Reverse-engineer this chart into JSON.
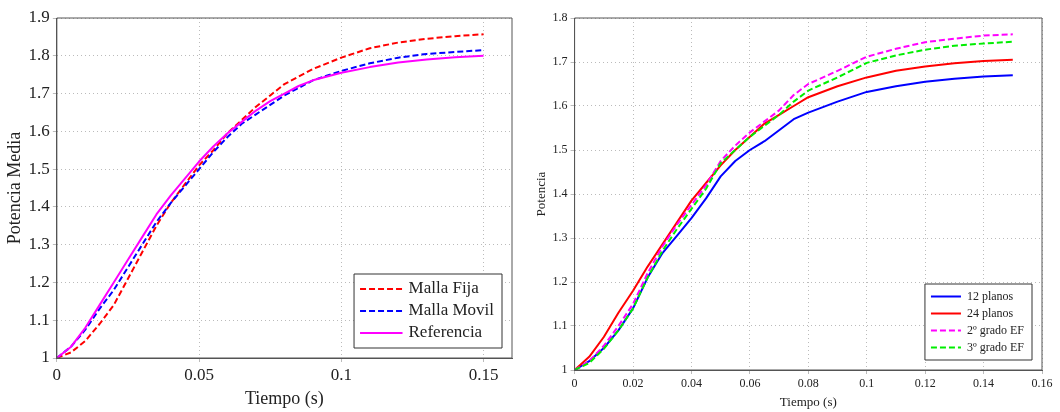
{
  "chart_data": [
    {
      "type": "line",
      "xlabel": "Tiempo (s)",
      "ylabel": "Potencia Media",
      "xlim": [
        0,
        0.16
      ],
      "xticks": [
        0,
        0.05,
        0.1,
        0.15
      ],
      "ylim": [
        1,
        1.9
      ],
      "yticks": [
        1,
        1.1,
        1.2,
        1.3,
        1.4,
        1.5,
        1.6,
        1.7,
        1.8,
        1.9
      ],
      "grid": true,
      "legend": "bottom right",
      "marker": "none",
      "x": [
        0,
        0.005,
        0.01,
        0.015,
        0.02,
        0.025,
        0.03,
        0.035,
        0.04,
        0.045,
        0.05,
        0.055,
        0.06,
        0.065,
        0.07,
        0.075,
        0.08,
        0.085,
        0.09,
        0.1,
        0.11,
        0.12,
        0.13,
        0.14,
        0.15
      ],
      "series": [
        {
          "name": "Malla Fija",
          "color": "#ff0000",
          "line_style": "dashed",
          "values": [
            1,
            1.015,
            1.045,
            1.09,
            1.14,
            1.21,
            1.28,
            1.35,
            1.41,
            1.46,
            1.51,
            1.55,
            1.595,
            1.63,
            1.665,
            1.695,
            1.725,
            1.745,
            1.765,
            1.795,
            1.82,
            1.835,
            1.845,
            1.852,
            1.857
          ]
        },
        {
          "name": "Malla Movil",
          "color": "#0000ff",
          "line_style": "dashed",
          "values": [
            1,
            1.03,
            1.075,
            1.13,
            1.18,
            1.24,
            1.3,
            1.36,
            1.41,
            1.455,
            1.5,
            1.545,
            1.585,
            1.62,
            1.645,
            1.67,
            1.695,
            1.715,
            1.735,
            1.76,
            1.78,
            1.795,
            1.805,
            1.81,
            1.815
          ]
        },
        {
          "name": "Referencia",
          "color": "#ff00ff",
          "line_style": "solid",
          "values": [
            1,
            1.03,
            1.08,
            1.14,
            1.2,
            1.26,
            1.32,
            1.38,
            1.43,
            1.475,
            1.52,
            1.56,
            1.595,
            1.625,
            1.655,
            1.68,
            1.7,
            1.72,
            1.735,
            1.755,
            1.77,
            1.782,
            1.79,
            1.796,
            1.8
          ]
        }
      ]
    },
    {
      "type": "line",
      "xlabel": "Tiempo (s)",
      "ylabel": "Potencia",
      "xlim": [
        0,
        0.16
      ],
      "xticks": [
        0,
        0.02,
        0.04,
        0.06,
        0.08,
        0.1,
        0.12,
        0.14,
        0.16
      ],
      "ylim": [
        1,
        1.8
      ],
      "yticks": [
        1,
        1.1,
        1.2,
        1.3,
        1.4,
        1.5,
        1.6,
        1.7,
        1.8
      ],
      "grid": true,
      "legend": "bottom right",
      "marker": "none",
      "x": [
        0,
        0.005,
        0.01,
        0.015,
        0.02,
        0.025,
        0.03,
        0.035,
        0.04,
        0.045,
        0.05,
        0.055,
        0.06,
        0.065,
        0.07,
        0.075,
        0.08,
        0.09,
        0.1,
        0.11,
        0.12,
        0.13,
        0.14,
        0.15
      ],
      "series": [
        {
          "name": "12 planos",
          "color": "#0000ff",
          "line_style": "solid",
          "values": [
            1,
            1.02,
            1.05,
            1.09,
            1.14,
            1.21,
            1.265,
            1.305,
            1.345,
            1.39,
            1.44,
            1.475,
            1.5,
            1.52,
            1.545,
            1.57,
            1.585,
            1.61,
            1.632,
            1.645,
            1.655,
            1.662,
            1.667,
            1.67
          ]
        },
        {
          "name": "24 planos",
          "color": "#ff0000",
          "line_style": "solid",
          "values": [
            1,
            1.03,
            1.075,
            1.13,
            1.18,
            1.235,
            1.285,
            1.335,
            1.385,
            1.425,
            1.465,
            1.5,
            1.53,
            1.56,
            1.58,
            1.6,
            1.62,
            1.645,
            1.665,
            1.68,
            1.69,
            1.697,
            1.702,
            1.705
          ]
        },
        {
          "name": "2º grado EF",
          "color": "#ff00ff",
          "line_style": "dashed",
          "values": [
            1,
            1.02,
            1.055,
            1.1,
            1.15,
            1.22,
            1.28,
            1.33,
            1.375,
            1.42,
            1.475,
            1.51,
            1.54,
            1.565,
            1.59,
            1.625,
            1.65,
            1.68,
            1.712,
            1.73,
            1.745,
            1.753,
            1.76,
            1.763
          ]
        },
        {
          "name": "3º grado EF",
          "color": "#00ee00",
          "line_style": "dashed",
          "values": [
            1,
            1.016,
            1.048,
            1.09,
            1.14,
            1.21,
            1.27,
            1.32,
            1.366,
            1.412,
            1.47,
            1.5,
            1.53,
            1.555,
            1.58,
            1.61,
            1.635,
            1.665,
            1.698,
            1.715,
            1.728,
            1.737,
            1.742,
            1.746
          ]
        }
      ]
    }
  ]
}
